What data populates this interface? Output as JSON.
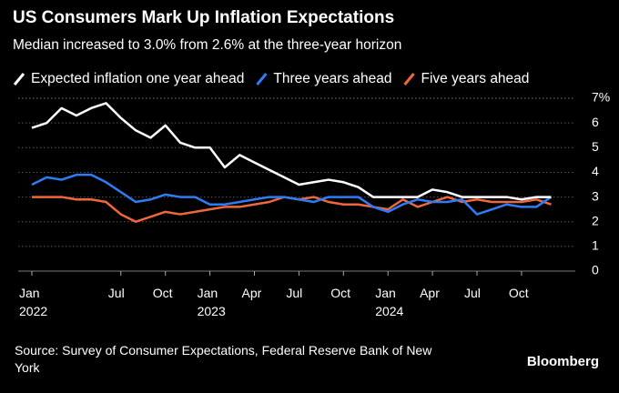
{
  "chart_data": {
    "type": "line",
    "title": "US Consumers Mark Up Inflation Expectations",
    "subtitle": "Median increased to 3.0% from 2.6% at the three-year horizon",
    "categories": [
      "Jan\n2022",
      null,
      null,
      null,
      null,
      null,
      "Jul",
      null,
      null,
      "Oct",
      null,
      null,
      "Jan\n2023",
      null,
      null,
      "Apr",
      null,
      null,
      "Jul",
      null,
      null,
      "Oct",
      null,
      null,
      "Jan\n2024",
      null,
      null,
      "Apr",
      null,
      null,
      "Jul",
      null,
      null,
      "Oct",
      null,
      null
    ],
    "series": [
      {
        "name": "Expected inflation one year ahead",
        "color": "#ffffff",
        "values": [
          5.8,
          6.0,
          6.6,
          6.3,
          6.6,
          6.8,
          6.2,
          5.7,
          5.4,
          5.9,
          5.2,
          5.0,
          5.0,
          4.2,
          4.7,
          4.4,
          4.1,
          3.8,
          3.5,
          3.6,
          3.7,
          3.6,
          3.4,
          3.0,
          3.0,
          3.0,
          3.0,
          3.3,
          3.2,
          3.0,
          3.0,
          3.0,
          3.0,
          2.9,
          3.0,
          3.0
        ]
      },
      {
        "name": "Three years ahead",
        "color": "#2f7cf6",
        "values": [
          3.5,
          3.8,
          3.7,
          3.9,
          3.9,
          3.6,
          3.2,
          2.8,
          2.9,
          3.1,
          3.0,
          3.0,
          2.7,
          2.7,
          2.8,
          2.9,
          3.0,
          3.0,
          2.9,
          2.8,
          3.0,
          3.0,
          3.0,
          2.6,
          2.4,
          2.7,
          2.9,
          2.8,
          2.8,
          2.9,
          2.3,
          2.5,
          2.7,
          2.6,
          2.6,
          3.0
        ]
      },
      {
        "name": "Five years ahead",
        "color": "#f0673c",
        "values": [
          3.0,
          3.0,
          3.0,
          2.9,
          2.9,
          2.8,
          2.3,
          2.0,
          2.2,
          2.4,
          2.3,
          2.4,
          2.5,
          2.6,
          2.6,
          2.7,
          2.8,
          3.0,
          2.9,
          3.0,
          2.8,
          2.7,
          2.7,
          2.6,
          2.5,
          2.9,
          2.6,
          2.8,
          3.0,
          2.8,
          2.9,
          2.8,
          2.8,
          2.8,
          2.9,
          2.7
        ]
      }
    ],
    "ylim": [
      0,
      7
    ],
    "yticks": [
      0,
      1,
      2,
      3,
      4,
      5,
      6,
      {
        "value": 7,
        "label": "7%"
      }
    ],
    "grid": true,
    "source": "Source: Survey of Consumer Expectations, Federal Reserve Bank of New York",
    "brand": "Bloomberg"
  }
}
